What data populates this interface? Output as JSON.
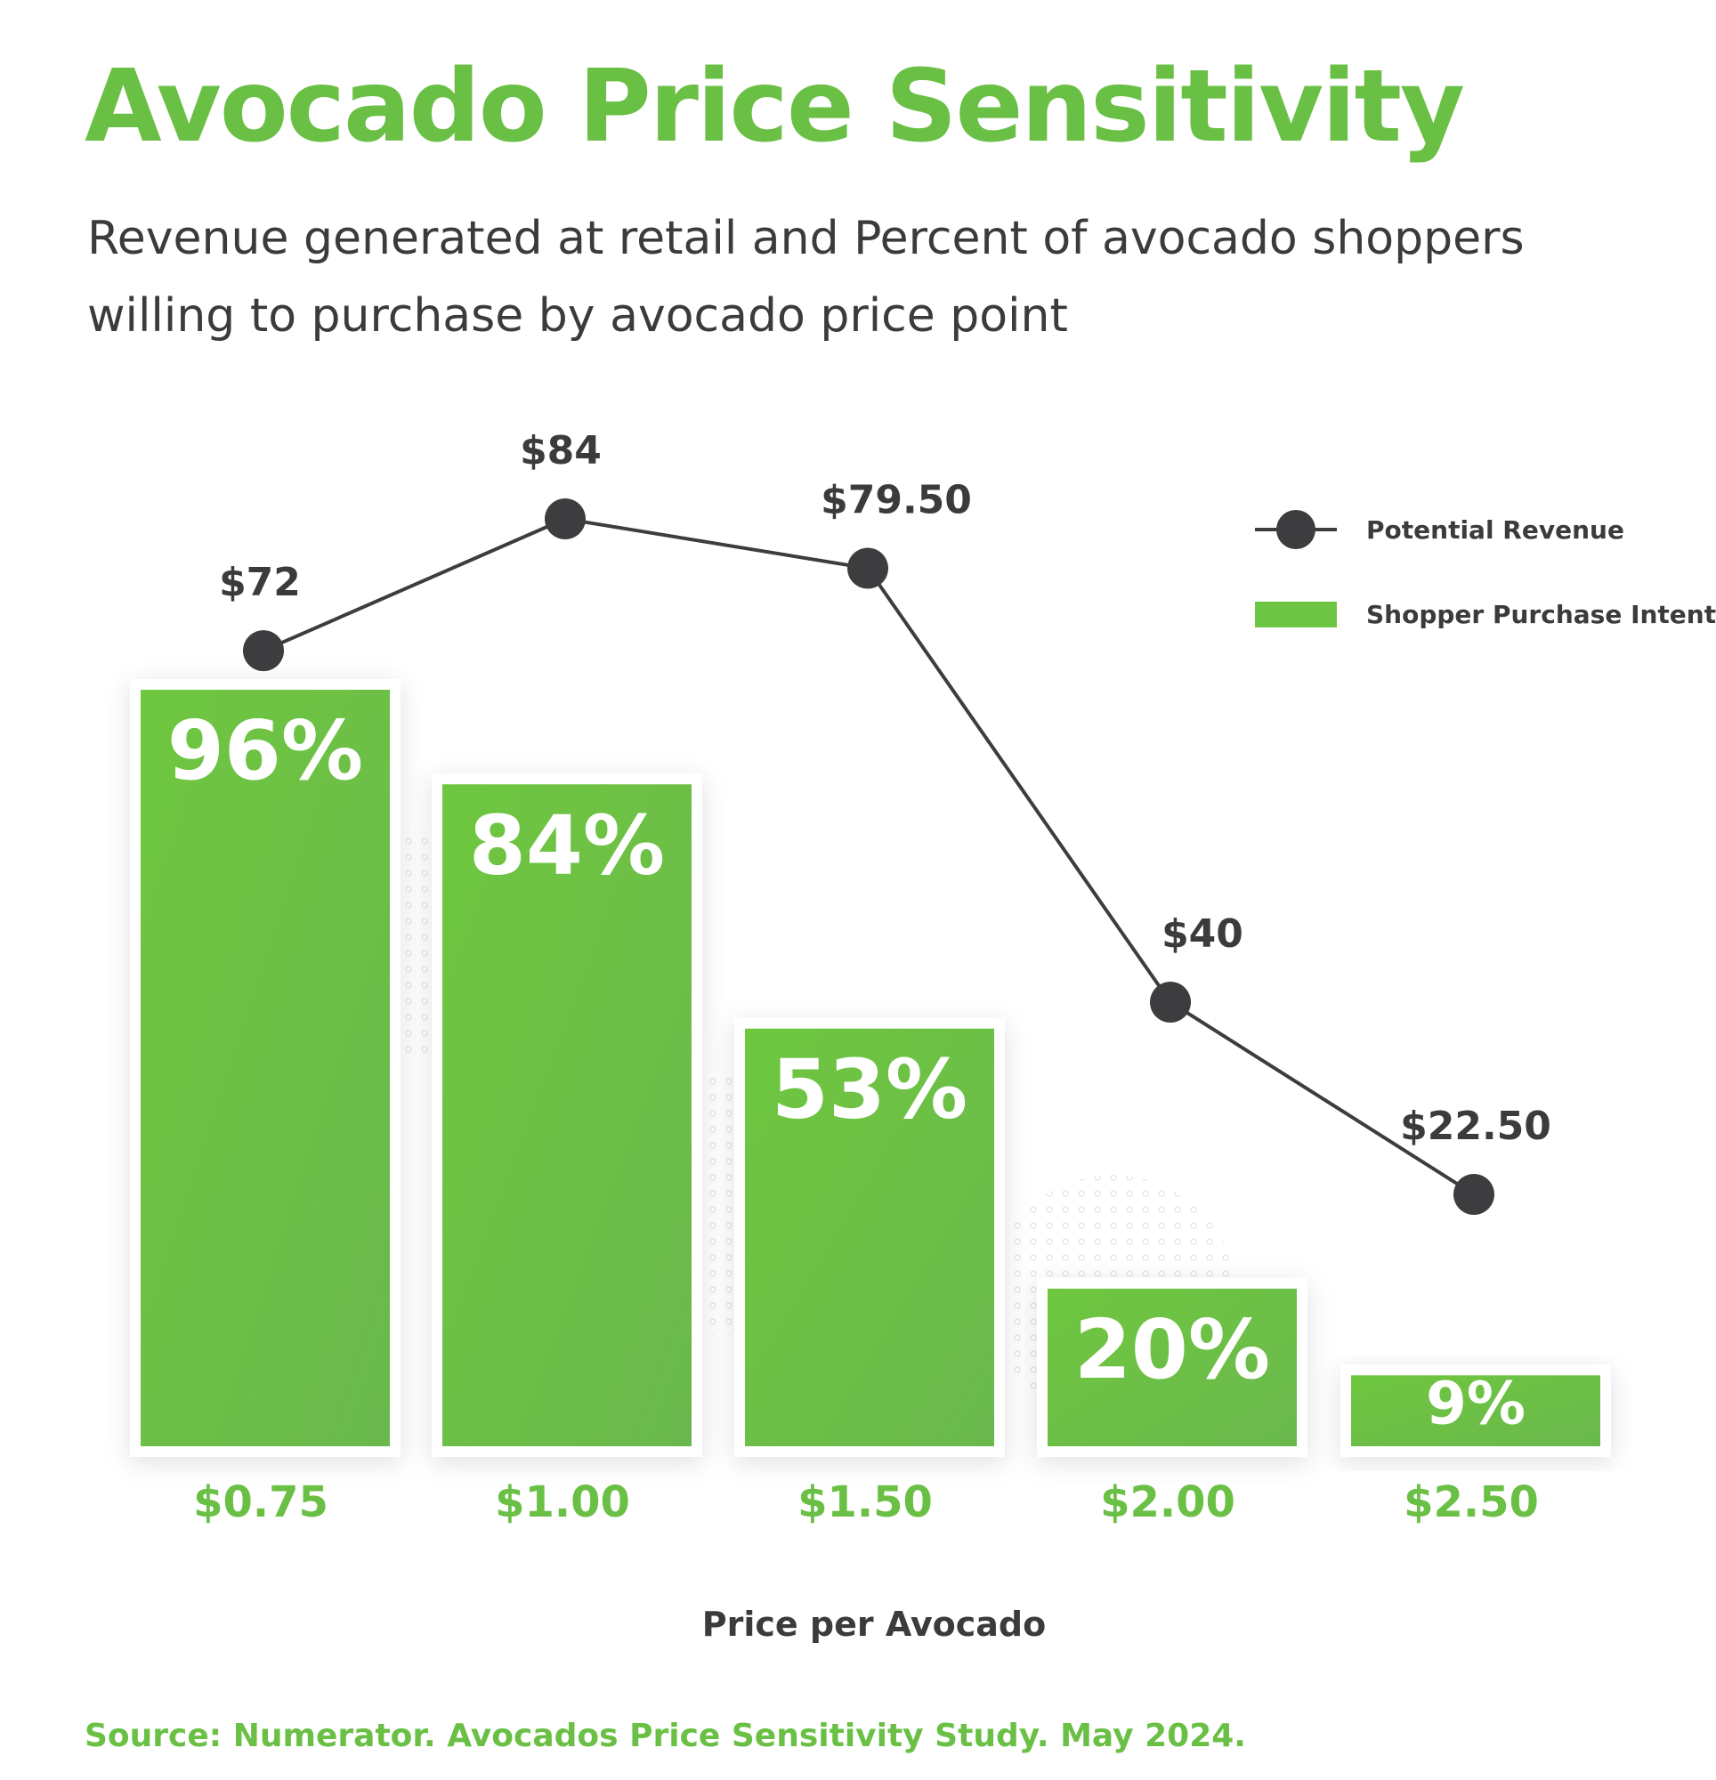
{
  "title": "Avocado Price Sensitivity",
  "subtitle": "Revenue generated at retail and Percent of avocado shoppers willing to purchase by avocado price point",
  "source": "Source: Numerator. Avocados Price Sensitivity Study. May 2024.",
  "colors": {
    "green": "#6abf45",
    "bar_green": "#6ec645",
    "dark": "#3b3b3d",
    "marker": "#3d3d40"
  },
  "chart_data": {
    "type": "bar",
    "categories": [
      "$0.75",
      "$1.00",
      "$1.50",
      "$2.00",
      "$2.50"
    ],
    "xlabel": "Price per Avocado",
    "ylabel": "",
    "series": [
      {
        "name": "Shopper Purchase Intent",
        "type": "bar",
        "values": [
          96,
          84,
          53,
          20,
          9
        ],
        "labels": [
          "96%",
          "84%",
          "53%",
          "20%",
          "9%"
        ]
      },
      {
        "name": "Potential Revenue",
        "type": "line",
        "values": [
          72,
          84,
          79.5,
          40,
          22.5
        ],
        "labels": [
          "$72",
          "$84",
          "$79.50",
          "$40",
          "$22.50"
        ]
      }
    ],
    "legend": {
      "position": "top-right",
      "entries": [
        "Potential Revenue",
        "Shopper Purchase Intent"
      ]
    },
    "grid": false
  }
}
